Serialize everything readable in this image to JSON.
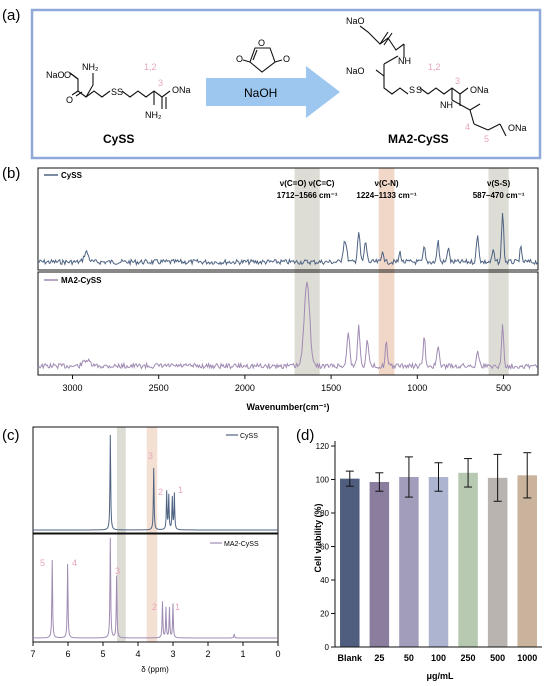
{
  "panel_labels": {
    "a": "(a)",
    "b": "(b)",
    "c": "(c)",
    "d": "(d)"
  },
  "scheme": {
    "reactant_name": "CySS",
    "product_name": "MA2-CySS",
    "reagent": "NaOH",
    "atoms": {
      "nh2": "NH₂",
      "onao": "NaO",
      "ona": "ONa",
      "o": "O",
      "s": "S",
      "nh": "NH"
    },
    "position_labels": {
      "p12": "1,2",
      "p3": "3",
      "p4": "4",
      "p5": "5"
    }
  },
  "colors": {
    "frame": "#8FA9DB",
    "arrow": "#9DC7EE",
    "label_pink": "#E8A6B8",
    "cyss": "#4F6483",
    "ma2": "#A08BB3",
    "band_gray": "#DEDDD5",
    "band_orange": "#F1D7C8"
  },
  "chart_data": [
    {
      "type": "line",
      "panel": "b",
      "xlabel": "Wavenumber(cm⁻¹)",
      "x_reversed": true,
      "xlim": [
        3200,
        300
      ],
      "x_ticks": [
        3000,
        2500,
        2000,
        1500,
        1000,
        500
      ],
      "series": [
        {
          "name": "CySS"
        },
        {
          "name": "MA2-CySS"
        }
      ],
      "bands": [
        {
          "label": "ν(C=O) ν(C=C)",
          "range_label": "1712–1566 cm⁻¹",
          "from": 1712,
          "to": 1566
        },
        {
          "label": "ν(C-N)",
          "range_label": "1224–1133 cm⁻¹",
          "from": 1224,
          "to": 1133
        },
        {
          "label": "ν(S-S)",
          "range_label": "587–470 cm⁻¹",
          "from": 587,
          "to": 470
        }
      ]
    },
    {
      "type": "line",
      "panel": "c",
      "xlabel": "δ (ppm)",
      "x_reversed": true,
      "xlim": [
        7,
        0
      ],
      "x_ticks": [
        7,
        6,
        5,
        4,
        3,
        2,
        1,
        0
      ],
      "series": [
        {
          "name": "CySS",
          "peaks": [
            4.79,
            3.55,
            3.18,
            3.02,
            2.96
          ],
          "peak_labels": [
            "3",
            "2",
            "1"
          ]
        },
        {
          "name": "MA2-CySS",
          "peaks": [
            6.45,
            6.01,
            4.79,
            4.61,
            3.3,
            3.2,
            3.1,
            3.0,
            1.25
          ],
          "peak_labels": [
            "5",
            "4",
            "3",
            "2",
            "1"
          ]
        }
      ],
      "bands": [
        {
          "from": 4.6,
          "to": 4.35
        },
        {
          "from": 3.75,
          "to": 3.45
        }
      ]
    },
    {
      "type": "bar",
      "panel": "d",
      "categories": [
        "Blank",
        "25",
        "50",
        "100",
        "250",
        "500",
        "1000"
      ],
      "values": [
        100.5,
        98.5,
        101.5,
        101.5,
        104,
        101,
        102.5
      ],
      "errors": [
        4.5,
        5.5,
        12,
        8.5,
        8.5,
        14,
        13.5
      ],
      "colors": [
        "#4F5E7E",
        "#8A7D9E",
        "#A39DBC",
        "#ACB4CF",
        "#B7C9B0",
        "#B9B4AF",
        "#C9B39C"
      ],
      "xlabel": "μg/mL",
      "ylabel": "Cell viability (%)",
      "ylim": [
        0,
        120
      ],
      "y_ticks": [
        0,
        20,
        40,
        60,
        80,
        100,
        120
      ]
    }
  ]
}
